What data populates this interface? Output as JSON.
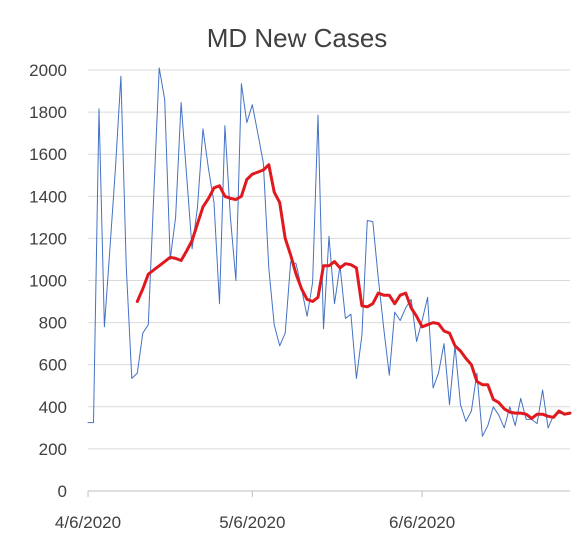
{
  "chart_data": {
    "type": "line",
    "title": "MD New Cases",
    "xlabel": "",
    "ylabel": "",
    "ylim": [
      0,
      2000
    ],
    "yticks": [
      0,
      200,
      400,
      600,
      800,
      1000,
      1200,
      1400,
      1600,
      1800,
      2000
    ],
    "xlim": [
      "2020-04-06",
      "2020-07-03"
    ],
    "xticks": [
      "2020-04-06",
      "2020-05-06",
      "2020-06-06"
    ],
    "xtick_labels": [
      "4/6/2020",
      "5/6/2020",
      "6/6/2020"
    ],
    "grid": "horizontal",
    "legend": "none",
    "series": [
      {
        "color": "#4472c4",
        "x": [
          "2020-04-06",
          "2020-04-07",
          "2020-04-08",
          "2020-04-09",
          "2020-04-10",
          "2020-04-11",
          "2020-04-12",
          "2020-04-13",
          "2020-04-14",
          "2020-04-15",
          "2020-04-16",
          "2020-04-17",
          "2020-04-18",
          "2020-04-19",
          "2020-04-20",
          "2020-04-21",
          "2020-04-22",
          "2020-04-23",
          "2020-04-24",
          "2020-04-25",
          "2020-04-26",
          "2020-04-27",
          "2020-04-28",
          "2020-04-29",
          "2020-04-30",
          "2020-05-01",
          "2020-05-02",
          "2020-05-03",
          "2020-05-04",
          "2020-05-05",
          "2020-05-06",
          "2020-05-07",
          "2020-05-08",
          "2020-05-09",
          "2020-05-10",
          "2020-05-11",
          "2020-05-12",
          "2020-05-13",
          "2020-05-14",
          "2020-05-15",
          "2020-05-16",
          "2020-05-17",
          "2020-05-18",
          "2020-05-19",
          "2020-05-20",
          "2020-05-21",
          "2020-05-22",
          "2020-05-23",
          "2020-05-24",
          "2020-05-25",
          "2020-05-26",
          "2020-05-27",
          "2020-05-28",
          "2020-05-29",
          "2020-05-30",
          "2020-05-31",
          "2020-06-01",
          "2020-06-02",
          "2020-06-03",
          "2020-06-04",
          "2020-06-05",
          "2020-06-06",
          "2020-06-07",
          "2020-06-08",
          "2020-06-09",
          "2020-06-10",
          "2020-06-11",
          "2020-06-12",
          "2020-06-13",
          "2020-06-14",
          "2020-06-15",
          "2020-06-16",
          "2020-06-17",
          "2020-06-18",
          "2020-06-19",
          "2020-06-20",
          "2020-06-21",
          "2020-06-22",
          "2020-06-23",
          "2020-06-24",
          "2020-06-25",
          "2020-06-26",
          "2020-06-27",
          "2020-06-28",
          "2020-06-29",
          "2020-06-30",
          "2020-07-01",
          "2020-07-02",
          "2020-07-03"
        ],
        "y": [
          325,
          325,
          1815,
          780,
          1150,
          1530,
          1970,
          1060,
          535,
          560,
          750,
          790,
          1400,
          2010,
          1860,
          1100,
          1300,
          1845,
          1500,
          1150,
          1350,
          1720,
          1530,
          1370,
          890,
          1735,
          1300,
          1000,
          1935,
          1750,
          1835,
          1700,
          1560,
          1060,
          790,
          690,
          750,
          1090,
          1080,
          960,
          830,
          990,
          1785,
          770,
          1210,
          890,
          1070,
          820,
          840,
          535,
          740,
          1285,
          1280,
          1010,
          770,
          550,
          850,
          810,
          870,
          910,
          710,
          810,
          920,
          490,
          560,
          700,
          410,
          690,
          410,
          330,
          380,
          560,
          260,
          310,
          400,
          360,
          300,
          400,
          310,
          440,
          340,
          340,
          320,
          480,
          300,
          360,
          370,
          365,
          375
        ]
      },
      {
        "color": "#e0191f",
        "x": [
          "2020-04-15",
          "2020-04-16",
          "2020-04-17",
          "2020-04-18",
          "2020-04-19",
          "2020-04-20",
          "2020-04-21",
          "2020-04-22",
          "2020-04-23",
          "2020-04-24",
          "2020-04-25",
          "2020-04-26",
          "2020-04-27",
          "2020-04-28",
          "2020-04-29",
          "2020-04-30",
          "2020-05-01",
          "2020-05-02",
          "2020-05-03",
          "2020-05-04",
          "2020-05-05",
          "2020-05-06",
          "2020-05-07",
          "2020-05-08",
          "2020-05-09",
          "2020-05-10",
          "2020-05-11",
          "2020-05-12",
          "2020-05-13",
          "2020-05-14",
          "2020-05-15",
          "2020-05-16",
          "2020-05-17",
          "2020-05-18",
          "2020-05-19",
          "2020-05-20",
          "2020-05-21",
          "2020-05-22",
          "2020-05-23",
          "2020-05-24",
          "2020-05-25",
          "2020-05-26",
          "2020-05-27",
          "2020-05-28",
          "2020-05-29",
          "2020-05-30",
          "2020-05-31",
          "2020-06-01",
          "2020-06-02",
          "2020-06-03",
          "2020-06-04",
          "2020-06-05",
          "2020-06-06",
          "2020-06-07",
          "2020-06-08",
          "2020-06-09",
          "2020-06-10",
          "2020-06-11",
          "2020-06-12",
          "2020-06-13",
          "2020-06-14",
          "2020-06-15",
          "2020-06-16",
          "2020-06-17",
          "2020-06-18",
          "2020-06-19",
          "2020-06-20",
          "2020-06-21",
          "2020-06-22",
          "2020-06-23",
          "2020-06-24",
          "2020-06-25",
          "2020-06-26",
          "2020-06-27",
          "2020-06-28",
          "2020-06-29",
          "2020-06-30",
          "2020-07-01",
          "2020-07-02",
          "2020-07-03"
        ],
        "y": [
          900,
          960,
          1030,
          1050,
          1070,
          1090,
          1110,
          1105,
          1095,
          1140,
          1190,
          1270,
          1350,
          1390,
          1440,
          1450,
          1400,
          1390,
          1385,
          1400,
          1480,
          1505,
          1515,
          1525,
          1550,
          1420,
          1370,
          1200,
          1120,
          1030,
          960,
          910,
          900,
          920,
          1070,
          1070,
          1090,
          1060,
          1080,
          1075,
          1060,
          880,
          875,
          890,
          940,
          930,
          930,
          890,
          930,
          940,
          870,
          830,
          780,
          790,
          800,
          795,
          760,
          750,
          690,
          665,
          630,
          600,
          520,
          505,
          505,
          435,
          420,
          390,
          375,
          370,
          370,
          365,
          345,
          365,
          365,
          355,
          350,
          380,
          365,
          370
        ]
      }
    ]
  }
}
